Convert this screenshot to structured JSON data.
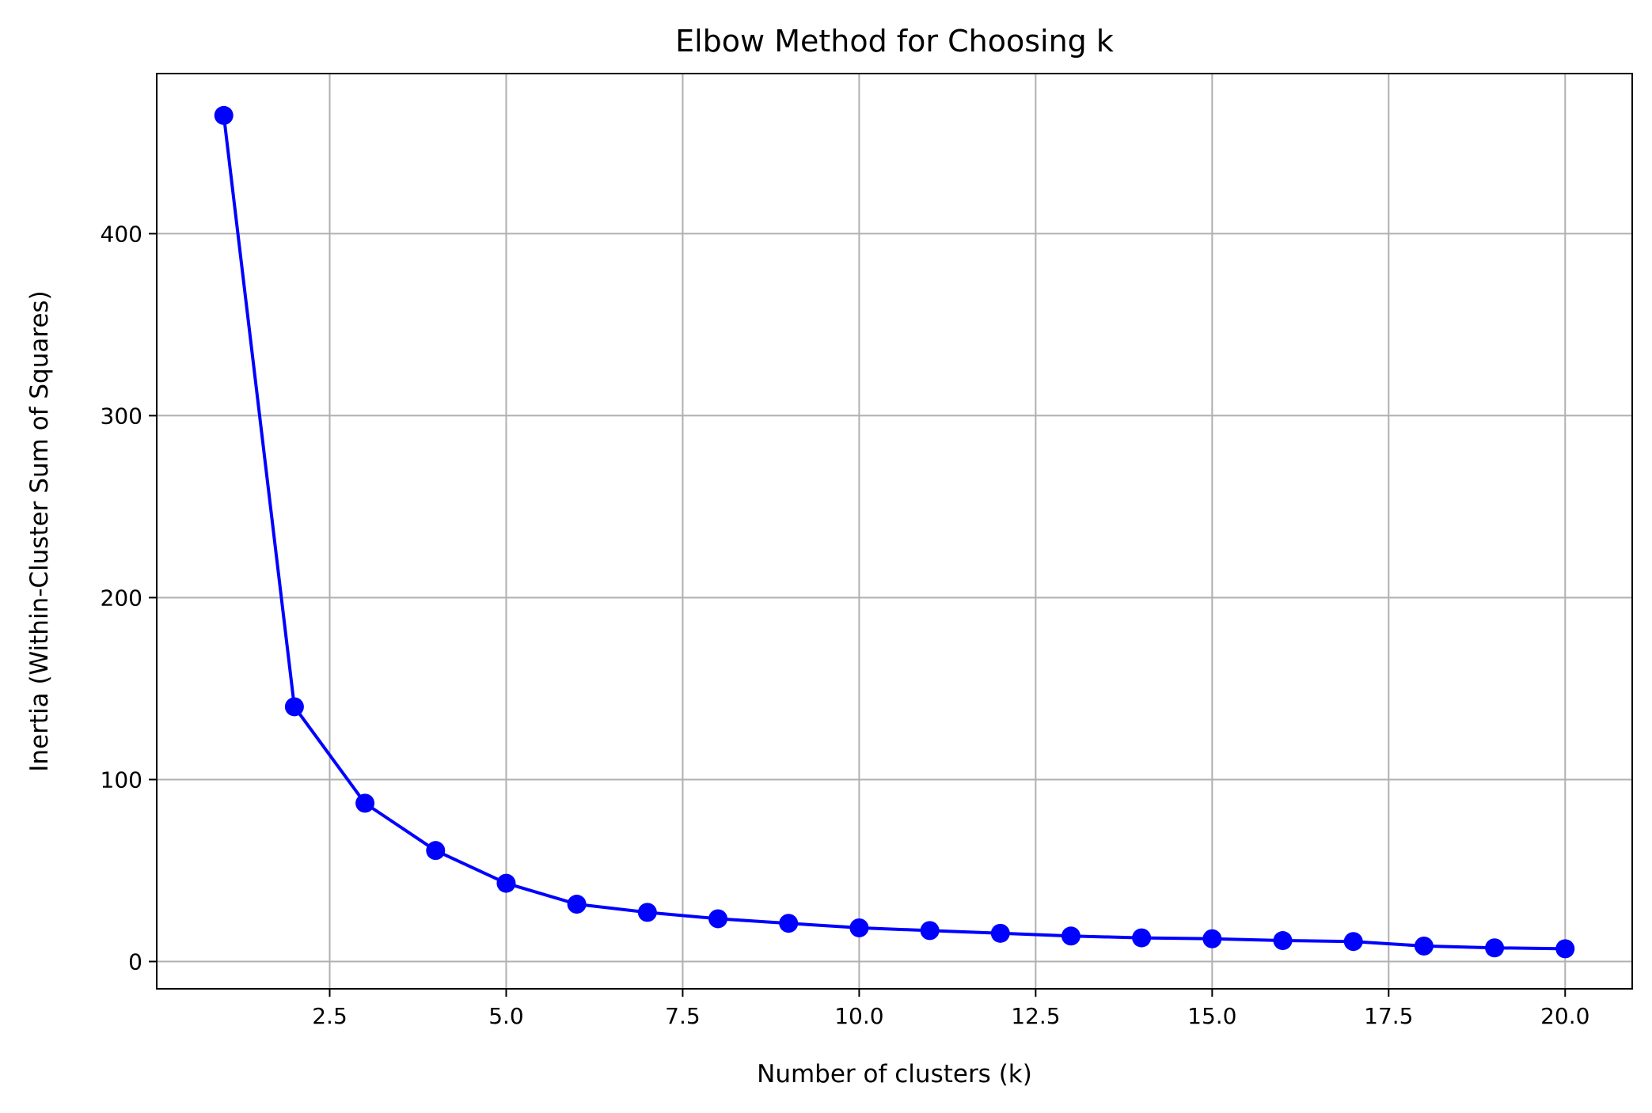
{
  "chart_data": {
    "type": "line",
    "title": "Elbow Method for Choosing k",
    "xlabel": "Number of clusters (k)",
    "ylabel": "Inertia (Within-Cluster Sum of Squares)",
    "xlim": [
      0.05,
      20.95
    ],
    "ylim": [
      -15,
      488
    ],
    "xticks": [
      2.5,
      5.0,
      7.5,
      10.0,
      12.5,
      15.0,
      17.5,
      20.0
    ],
    "xtick_labels": [
      "2.5",
      "5.0",
      "7.5",
      "10.0",
      "12.5",
      "15.0",
      "17.5",
      "20.0"
    ],
    "yticks": [
      0,
      100,
      200,
      300,
      400
    ],
    "ytick_labels": [
      "0",
      "100",
      "200",
      "300",
      "400"
    ],
    "grid": true,
    "line_color": "#0000ff",
    "marker": "circle",
    "series": [
      {
        "x": [
          1,
          2,
          3,
          4,
          5,
          6,
          7,
          8,
          9,
          10,
          11,
          12,
          13,
          14,
          15,
          16,
          17,
          18,
          19,
          20
        ],
        "values": [
          465,
          140,
          87,
          61,
          43,
          31.5,
          27,
          23.5,
          21,
          18.5,
          17,
          15.5,
          14,
          13,
          12.5,
          11.5,
          11,
          8.5,
          7.5,
          7
        ]
      }
    ]
  }
}
